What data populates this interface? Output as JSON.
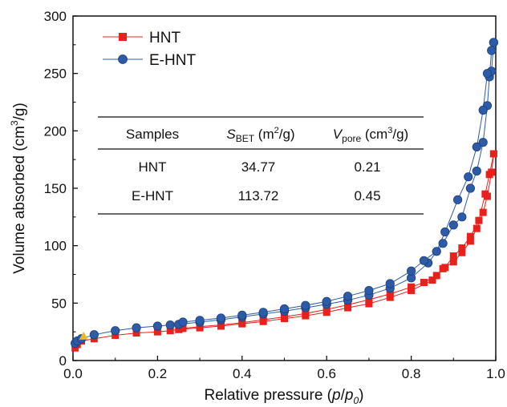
{
  "chart_data": {
    "type": "scatter",
    "xlabel": "Relative pressure (p/p0)",
    "ylabel": "Volume absorbed (cm3/g)",
    "xlim": [
      0.0,
      1.0
    ],
    "ylim": [
      0,
      300
    ],
    "x_ticks": [
      "0.0",
      "0.2",
      "0.4",
      "0.6",
      "0.8",
      "1.0"
    ],
    "y_ticks": [
      "0",
      "50",
      "100",
      "150",
      "200",
      "250",
      "300"
    ],
    "grid": false,
    "legend_position": "top-left",
    "series": [
      {
        "name": "HNT",
        "color": "#e8211d",
        "marker": "square",
        "adsorption": [
          [
            0.005,
            11
          ],
          [
            0.01,
            14
          ],
          [
            0.02,
            17
          ],
          [
            0.05,
            19
          ],
          [
            0.1,
            22
          ],
          [
            0.15,
            24
          ],
          [
            0.2,
            25
          ],
          [
            0.23,
            26
          ],
          [
            0.25,
            27
          ],
          [
            0.3,
            28.5
          ],
          [
            0.35,
            30
          ],
          [
            0.4,
            32
          ],
          [
            0.45,
            34
          ],
          [
            0.5,
            36.5
          ],
          [
            0.55,
            39
          ],
          [
            0.6,
            42
          ],
          [
            0.65,
            46
          ],
          [
            0.7,
            49.5
          ],
          [
            0.75,
            55
          ],
          [
            0.8,
            61
          ],
          [
            0.85,
            70
          ],
          [
            0.875,
            80
          ],
          [
            0.9,
            86
          ],
          [
            0.92,
            94
          ],
          [
            0.94,
            104
          ],
          [
            0.955,
            115
          ],
          [
            0.97,
            129
          ],
          [
            0.98,
            143
          ],
          [
            0.99,
            164
          ],
          [
            0.995,
            180
          ]
        ],
        "desorption": [
          [
            0.995,
            180
          ],
          [
            0.985,
            162
          ],
          [
            0.975,
            145
          ],
          [
            0.96,
            122
          ],
          [
            0.94,
            108
          ],
          [
            0.92,
            98
          ],
          [
            0.9,
            91
          ],
          [
            0.88,
            81
          ],
          [
            0.86,
            74
          ],
          [
            0.83,
            68
          ],
          [
            0.8,
            64
          ],
          [
            0.75,
            58
          ],
          [
            0.7,
            53
          ],
          [
            0.65,
            48.5
          ],
          [
            0.6,
            44.5
          ],
          [
            0.55,
            41
          ],
          [
            0.5,
            38
          ],
          [
            0.45,
            35.5
          ],
          [
            0.4,
            33
          ],
          [
            0.35,
            31
          ],
          [
            0.3,
            29.5
          ],
          [
            0.26,
            28
          ]
        ]
      },
      {
        "name": "E-HNT",
        "color": "#2d5ba8",
        "marker": "circle",
        "adsorption": [
          [
            0.005,
            15
          ],
          [
            0.01,
            17
          ],
          [
            0.02,
            19
          ],
          [
            0.05,
            22.5
          ],
          [
            0.1,
            26
          ],
          [
            0.15,
            28.5
          ],
          [
            0.2,
            30
          ],
          [
            0.23,
            31
          ],
          [
            0.25,
            31.5
          ],
          [
            0.3,
            33.5
          ],
          [
            0.35,
            35.5
          ],
          [
            0.4,
            38
          ],
          [
            0.45,
            40.5
          ],
          [
            0.5,
            43
          ],
          [
            0.55,
            46
          ],
          [
            0.6,
            49
          ],
          [
            0.65,
            52.5
          ],
          [
            0.7,
            57
          ],
          [
            0.75,
            63
          ],
          [
            0.8,
            72
          ],
          [
            0.84,
            85
          ],
          [
            0.875,
            102
          ],
          [
            0.9,
            118
          ],
          [
            0.92,
            125
          ],
          [
            0.94,
            150
          ],
          [
            0.955,
            165
          ],
          [
            0.97,
            190
          ],
          [
            0.98,
            222
          ],
          [
            0.985,
            247
          ],
          [
            0.99,
            270
          ],
          [
            0.995,
            277
          ]
        ],
        "desorption": [
          [
            0.995,
            277
          ],
          [
            0.99,
            252
          ],
          [
            0.98,
            250
          ],
          [
            0.97,
            218
          ],
          [
            0.955,
            186
          ],
          [
            0.935,
            160
          ],
          [
            0.91,
            140
          ],
          [
            0.88,
            112
          ],
          [
            0.86,
            95
          ],
          [
            0.83,
            87
          ],
          [
            0.8,
            78
          ],
          [
            0.75,
            67
          ],
          [
            0.7,
            61
          ],
          [
            0.65,
            56
          ],
          [
            0.6,
            51.5
          ],
          [
            0.55,
            48
          ],
          [
            0.5,
            45
          ],
          [
            0.45,
            42
          ],
          [
            0.4,
            39.5
          ],
          [
            0.35,
            37
          ],
          [
            0.3,
            35
          ],
          [
            0.26,
            33.5
          ]
        ]
      }
    ],
    "highlight_marker": {
      "x": 0.025,
      "y": 21,
      "color": "#e8b923",
      "shape": "triangle"
    }
  },
  "table": {
    "headers": {
      "samples": "Samples",
      "sbet_main": "S",
      "sbet_sub": "BET",
      "sbet_unit": " (m",
      "sbet_sup": "2",
      "sbet_end": "/g)",
      "vpore_main": "V",
      "vpore_sub": "pore",
      "vpore_unit": " (cm",
      "vpore_sup": "3",
      "vpore_end": "/g)"
    },
    "rows": [
      {
        "sample": "HNT",
        "sbet": "34.77",
        "vpore": "0.21"
      },
      {
        "sample": "E-HNT",
        "sbet": "113.72",
        "vpore": "0.45"
      }
    ]
  },
  "axis_title_parts": {
    "x_main": "Relative pressure (",
    "x_p": "p",
    "x_slash": "/",
    "x_p0": "p",
    "x_p0_sub": "0",
    "x_end": ")",
    "y_main": "Volume absorbed (cm",
    "y_sup": "3",
    "y_end": "/g)"
  }
}
